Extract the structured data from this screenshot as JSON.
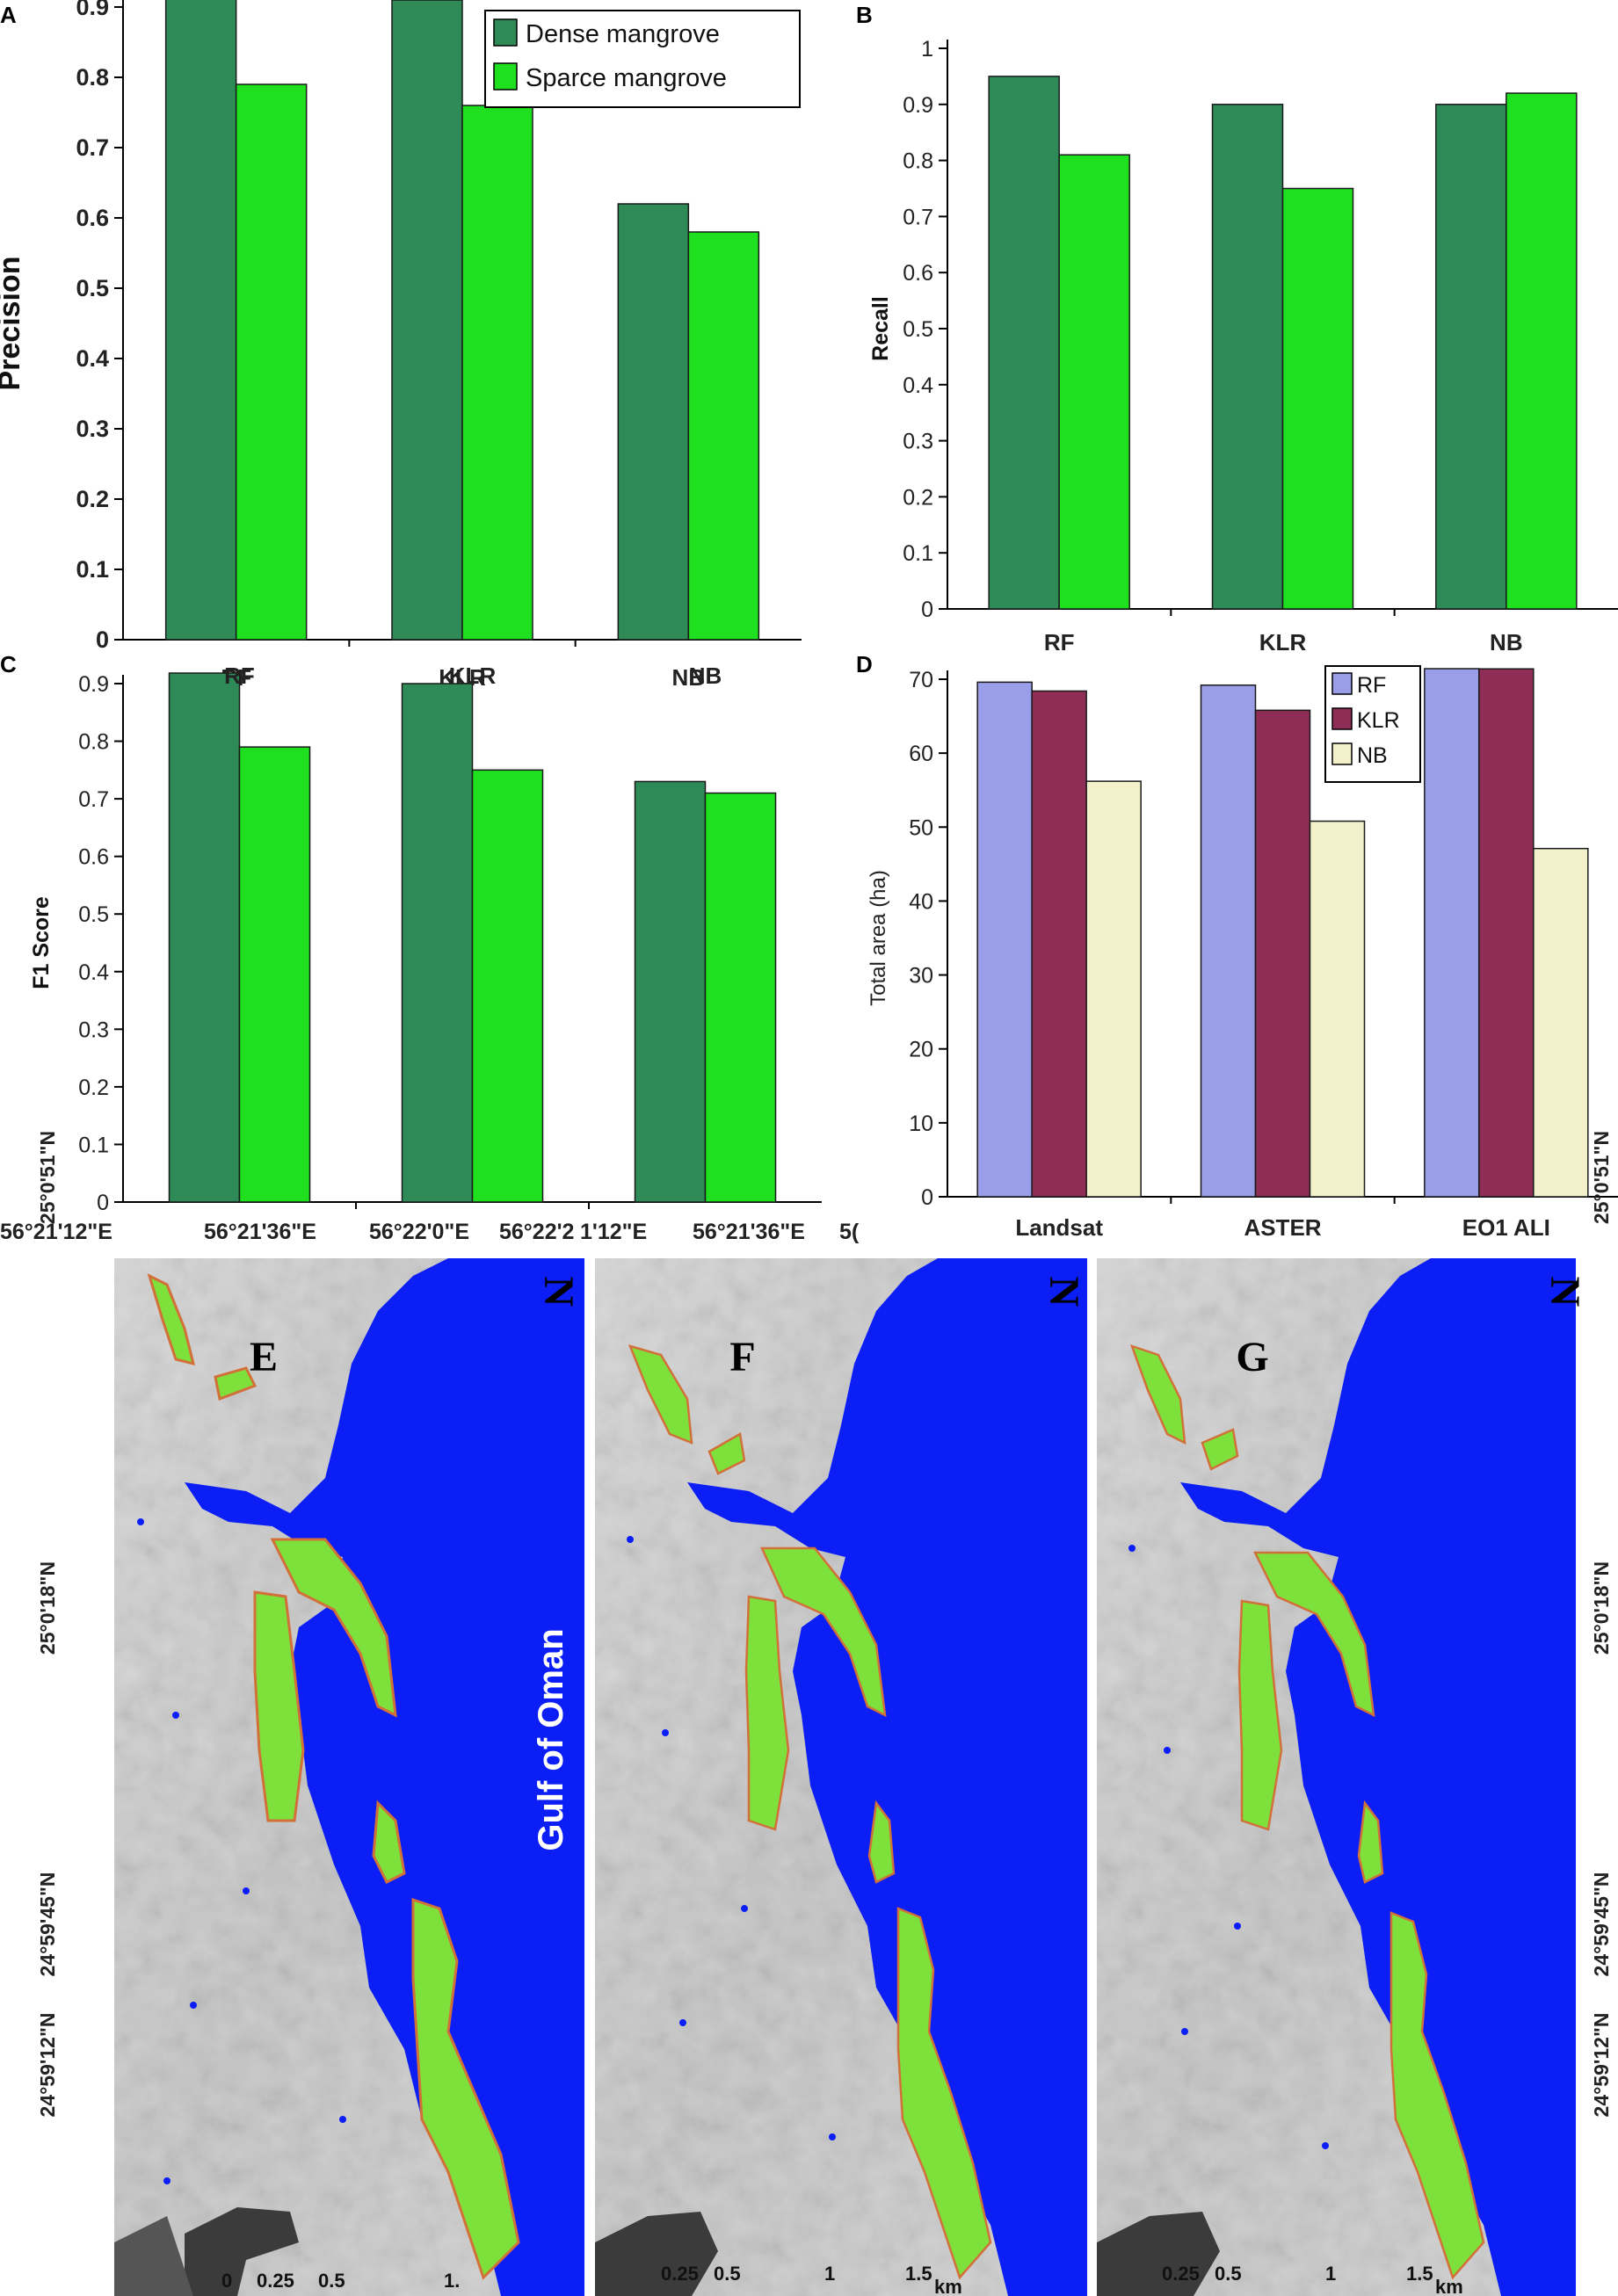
{
  "colors": {
    "dense": "#2e8b57",
    "sparse": "#1ee01e",
    "rf": "#9a9ee8",
    "klr": "#8e2d55",
    "nb": "#f3f1cb",
    "sea": "#0a1ef5",
    "mangrove": "#7ee03a",
    "outline": "#d2703a",
    "terrain": "#c9c9c9"
  },
  "chart_data": [
    {
      "id": "A",
      "type": "bar",
      "panel_label": "A",
      "categories": [
        "RF",
        "KLR",
        "NB"
      ],
      "series": [
        {
          "name": "Dense mangrove",
          "values": [
            0.92,
            0.91,
            0.62
          ]
        },
        {
          "name": "Sparce mangrove",
          "values": [
            0.79,
            0.76,
            0.58
          ]
        }
      ],
      "ylabel": "Precision",
      "ylim": [
        0,
        0.9
      ],
      "yticks": [
        "0",
        "0.1",
        "0.2",
        "0.3",
        "0.4",
        "0.5",
        "0.6",
        "0.7",
        "0.8",
        "0.9"
      ],
      "legend": "top-right",
      "grid": false
    },
    {
      "id": "B",
      "type": "bar",
      "panel_label": "B",
      "categories": [
        "RF",
        "KLR",
        "NB"
      ],
      "series": [
        {
          "values": [
            0.95,
            0.9,
            0.9
          ]
        },
        {
          "values": [
            0.81,
            0.75,
            0.92
          ]
        }
      ],
      "ylabel": "Recall",
      "ylim": [
        0,
        1
      ],
      "yticks": [
        "0",
        "0.1",
        "0.2",
        "0.3",
        "0.4",
        "0.5",
        "0.6",
        "0.7",
        "0.8",
        "0.9",
        "1"
      ],
      "grid": false
    },
    {
      "id": "C",
      "type": "bar",
      "panel_label": "C",
      "categories": [
        "RF",
        "KLR",
        "NB"
      ],
      "series": [
        {
          "values": [
            0.93,
            0.9,
            0.73
          ]
        },
        {
          "values": [
            0.79,
            0.75,
            0.71
          ]
        }
      ],
      "ylabel": "F1 Score",
      "ylim": [
        0,
        0.9
      ],
      "yticks": [
        "0",
        "0.1",
        "0.2",
        "0.3",
        "0.4",
        "0.5",
        "0.6",
        "0.7",
        "0.8",
        "0.9"
      ],
      "grid": false
    },
    {
      "id": "D",
      "type": "bar",
      "panel_label": "D",
      "categories": [
        "Landsat",
        "ASTER",
        "EO1 ALI"
      ],
      "series": [
        {
          "name": "RF",
          "values": [
            69.6,
            69.2,
            72.7
          ]
        },
        {
          "name": "KLR",
          "values": [
            68.4,
            65.8,
            71.4
          ]
        },
        {
          "name": "NB",
          "values": [
            56.2,
            50.8,
            47.1
          ]
        }
      ],
      "ylabel": "Total area (ha)",
      "ylim": [
        0,
        70
      ],
      "yticks": [
        "0",
        "10",
        "20",
        "30",
        "40",
        "50",
        "60",
        "70"
      ],
      "legend": "top-right",
      "grid": false
    }
  ],
  "maps": {
    "panels": [
      "E",
      "F",
      "G"
    ],
    "sea_label": "Gulf of Oman",
    "north_label": "N",
    "top_coords": [
      "56°21'12\"E",
      "56°21'36\"E",
      "56°22'0\"E",
      "56°22'2",
      "1'12\"E",
      "56°21'36\"E",
      "5("
    ],
    "side_coords": [
      "25°0'51\"N",
      "25°0'18\"N",
      "24°59'45\"N",
      "24°59'12\"N"
    ],
    "scale_e": [
      "0",
      "0.25",
      "0.5",
      "1."
    ],
    "scale_f": [
      "0.25",
      "0.5",
      "1",
      "1.5",
      "km"
    ],
    "scale_g": [
      "0.25",
      "0.5",
      "1",
      "1.5",
      "km"
    ]
  }
}
